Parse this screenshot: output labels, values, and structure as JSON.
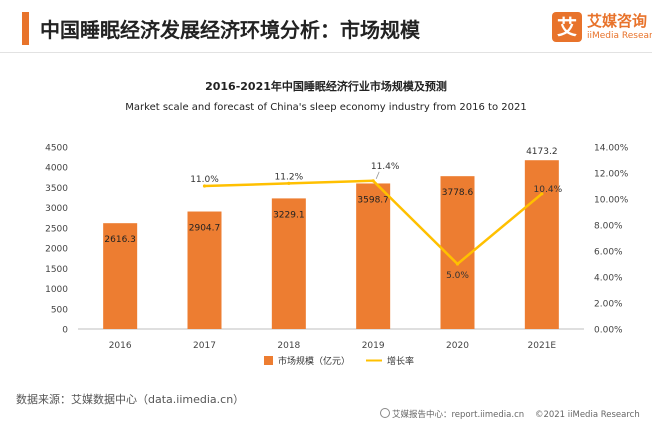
{
  "header": {
    "title": "中国睡眠经济发展经济环境分析：市场规模",
    "logo_mark": "艾",
    "logo_cn": "艾媒咨询",
    "logo_en": "iiMedia Research"
  },
  "chart_data": {
    "type": "bar",
    "title": "2016-2021年中国睡眠经济行业市场规模及预测",
    "subtitle": "Market scale and forecast of China's sleep economy industry from 2016 to 2021",
    "categories": [
      "2016",
      "2017",
      "2018",
      "2019",
      "2020",
      "2021E"
    ],
    "series": [
      {
        "name": "市场规模（亿元）",
        "type": "bar",
        "axis": "left",
        "color": "#ed7d31",
        "values": [
          2616.3,
          2904.7,
          3229.1,
          3598.7,
          3778.6,
          4173.2
        ],
        "labels": [
          "2616.3",
          "2904.7",
          "3229.1",
          "3598.7",
          "3778.6",
          "4173.2"
        ]
      },
      {
        "name": "增长率",
        "type": "line",
        "axis": "right",
        "color": "#ffc000",
        "values": [
          null,
          11.0,
          11.2,
          11.4,
          5.0,
          10.4
        ],
        "labels": [
          "",
          "11.0%",
          "11.2%",
          "11.4%",
          "5.0%",
          "10.4%"
        ]
      }
    ],
    "left_axis": {
      "min": 0,
      "max": 4500,
      "ticks": [
        "0",
        "500",
        "1000",
        "1500",
        "2000",
        "2500",
        "3000",
        "3500",
        "4000",
        "4500"
      ]
    },
    "right_axis": {
      "min": 0,
      "max": 14,
      "ticks": [
        "0.00%",
        "2.00%",
        "4.00%",
        "6.00%",
        "8.00%",
        "10.00%",
        "12.00%",
        "14.00%"
      ]
    },
    "grid": false,
    "legend_position": "bottom"
  },
  "footer": {
    "source": "数据来源：艾媒数据中心（data.iimedia.cn）",
    "report": "艾媒报告中心：report.iimedia.cn",
    "copyright": "©2021  iiMedia Research"
  }
}
